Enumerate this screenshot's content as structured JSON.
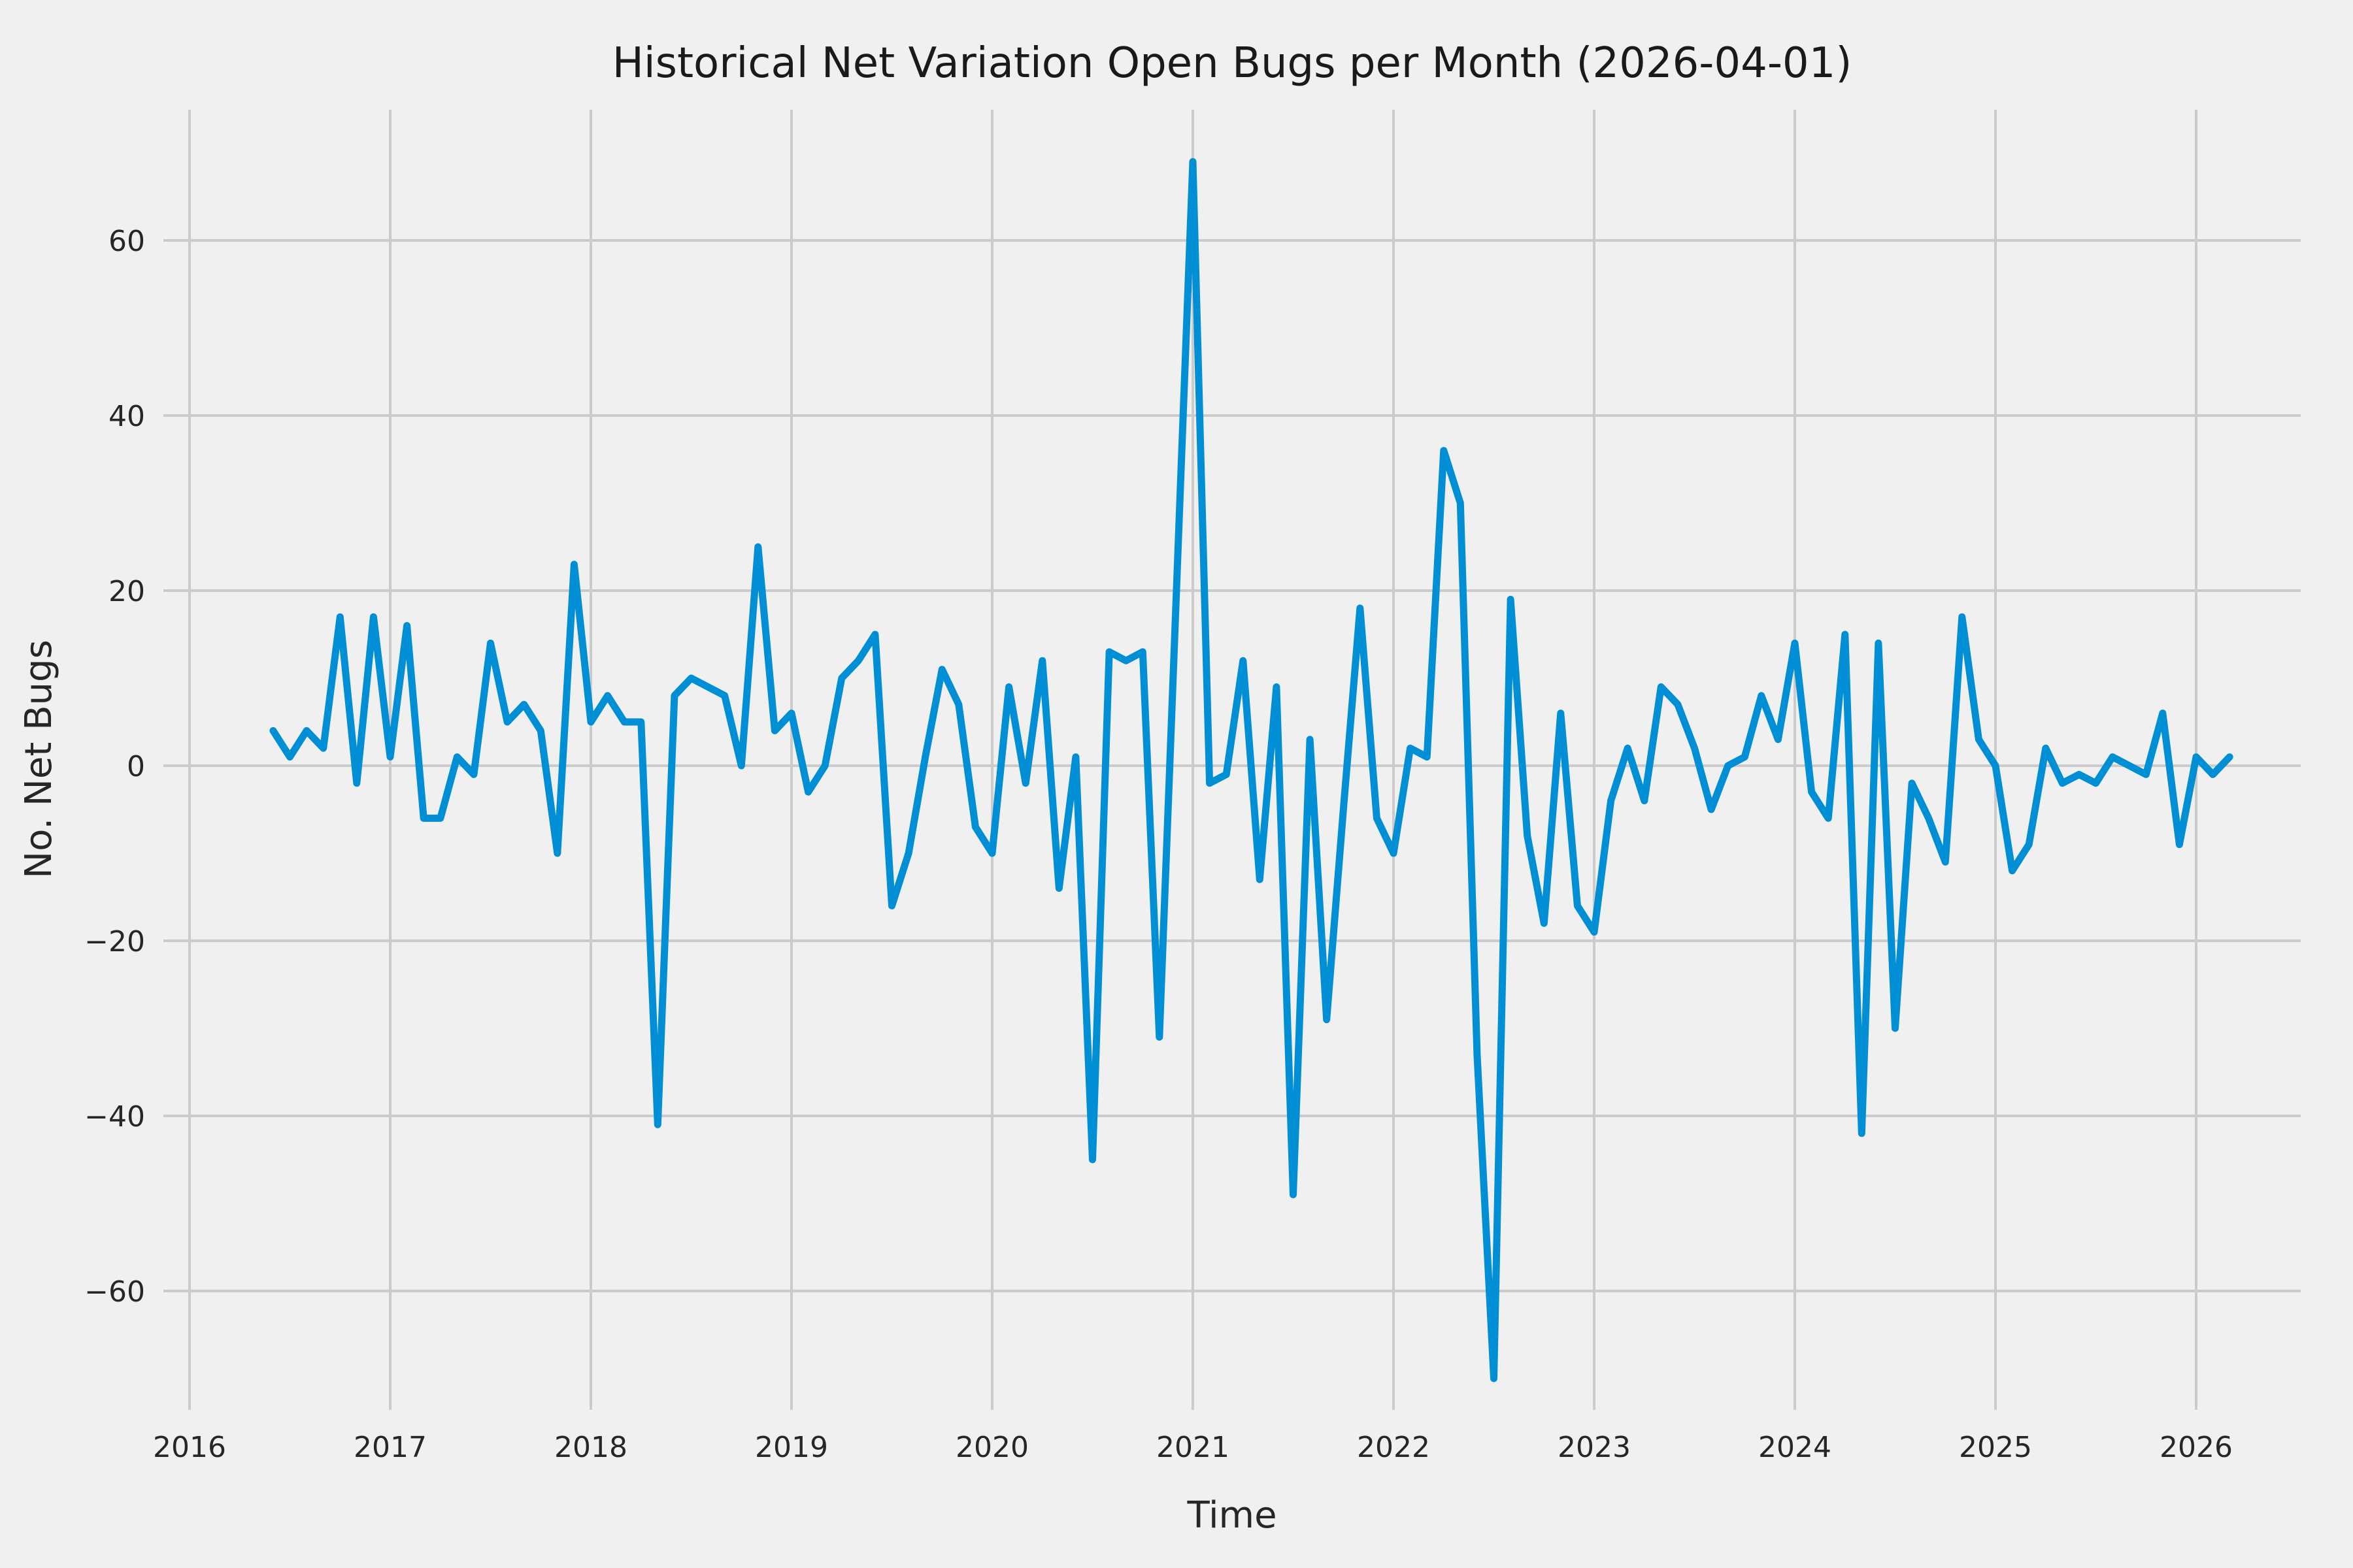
{
  "figure": {
    "background_color": "#f0f0f0",
    "grid_color": "#cbcbcb",
    "line_color": "#008fd5"
  },
  "chart_data": {
    "type": "line",
    "title": "Historical Net Variation Open Bugs per Month (2026-04-01)",
    "xlabel": "Time",
    "ylabel": "No. Net Bugs",
    "legend": "none",
    "grid": "on",
    "x_tick_labels": [
      "2016",
      "2017",
      "2018",
      "2019",
      "2020",
      "2021",
      "2022",
      "2023",
      "2024",
      "2025",
      "2026"
    ],
    "y_tick_labels": [
      "−60",
      "−40",
      "−20",
      "0",
      "20",
      "40",
      "60"
    ],
    "y_tick_values": [
      -60,
      -40,
      -20,
      0,
      20,
      40,
      60
    ],
    "xlim_years": [
      2015.86,
      2026.52
    ],
    "ylim": [
      -73.5,
      74.5
    ],
    "series": [
      {
        "name": "Net variation of open bugs",
        "color": "#008fd5",
        "points": [
          {
            "date": "2016-06",
            "value": 4
          },
          {
            "date": "2016-07",
            "value": 1
          },
          {
            "date": "2016-08",
            "value": 4
          },
          {
            "date": "2016-09",
            "value": 2
          },
          {
            "date": "2016-10",
            "value": 17
          },
          {
            "date": "2016-11",
            "value": -2
          },
          {
            "date": "2016-12",
            "value": 17
          },
          {
            "date": "2017-01",
            "value": 1
          },
          {
            "date": "2017-02",
            "value": 16
          },
          {
            "date": "2017-03",
            "value": -6
          },
          {
            "date": "2017-04",
            "value": -6
          },
          {
            "date": "2017-05",
            "value": 1
          },
          {
            "date": "2017-06",
            "value": -1
          },
          {
            "date": "2017-07",
            "value": 14
          },
          {
            "date": "2017-08",
            "value": 5
          },
          {
            "date": "2017-09",
            "value": 7
          },
          {
            "date": "2017-10",
            "value": 4
          },
          {
            "date": "2017-11",
            "value": -10
          },
          {
            "date": "2017-12",
            "value": 23
          },
          {
            "date": "2018-01",
            "value": 5
          },
          {
            "date": "2018-02",
            "value": 8
          },
          {
            "date": "2018-03",
            "value": 5
          },
          {
            "date": "2018-04",
            "value": 5
          },
          {
            "date": "2018-05",
            "value": -41
          },
          {
            "date": "2018-06",
            "value": 8
          },
          {
            "date": "2018-07",
            "value": 10
          },
          {
            "date": "2018-08",
            "value": 9
          },
          {
            "date": "2018-09",
            "value": 8
          },
          {
            "date": "2018-10",
            "value": 0
          },
          {
            "date": "2018-11",
            "value": 25
          },
          {
            "date": "2018-12",
            "value": 4
          },
          {
            "date": "2019-01",
            "value": 6
          },
          {
            "date": "2019-02",
            "value": -3
          },
          {
            "date": "2019-03",
            "value": 0
          },
          {
            "date": "2019-04",
            "value": 10
          },
          {
            "date": "2019-05",
            "value": 12
          },
          {
            "date": "2019-06",
            "value": 15
          },
          {
            "date": "2019-07",
            "value": -16
          },
          {
            "date": "2019-08",
            "value": -10
          },
          {
            "date": "2019-09",
            "value": 1
          },
          {
            "date": "2019-10",
            "value": 11
          },
          {
            "date": "2019-11",
            "value": 7
          },
          {
            "date": "2019-12",
            "value": -7
          },
          {
            "date": "2020-01",
            "value": -10
          },
          {
            "date": "2020-02",
            "value": 9
          },
          {
            "date": "2020-03",
            "value": -2
          },
          {
            "date": "2020-04",
            "value": 12
          },
          {
            "date": "2020-05",
            "value": -14
          },
          {
            "date": "2020-06",
            "value": 1
          },
          {
            "date": "2020-07",
            "value": -45
          },
          {
            "date": "2020-08",
            "value": 13
          },
          {
            "date": "2020-09",
            "value": 12
          },
          {
            "date": "2020-10",
            "value": 13
          },
          {
            "date": "2020-11",
            "value": -31
          },
          {
            "date": "2020-12",
            "value": 19
          },
          {
            "date": "2021-01",
            "value": 69
          },
          {
            "date": "2021-02",
            "value": -2
          },
          {
            "date": "2021-03",
            "value": -1
          },
          {
            "date": "2021-04",
            "value": 12
          },
          {
            "date": "2021-05",
            "value": -13
          },
          {
            "date": "2021-06",
            "value": 9
          },
          {
            "date": "2021-07",
            "value": -49
          },
          {
            "date": "2021-08",
            "value": 3
          },
          {
            "date": "2021-09",
            "value": -29
          },
          {
            "date": "2021-10",
            "value": -5
          },
          {
            "date": "2021-11",
            "value": 18
          },
          {
            "date": "2021-12",
            "value": -6
          },
          {
            "date": "2022-01",
            "value": -10
          },
          {
            "date": "2022-02",
            "value": 2
          },
          {
            "date": "2022-03",
            "value": 1
          },
          {
            "date": "2022-04",
            "value": 36
          },
          {
            "date": "2022-05",
            "value": 30
          },
          {
            "date": "2022-06",
            "value": -33
          },
          {
            "date": "2022-07",
            "value": -70
          },
          {
            "date": "2022-08",
            "value": 19
          },
          {
            "date": "2022-09",
            "value": -8
          },
          {
            "date": "2022-10",
            "value": -18
          },
          {
            "date": "2022-11",
            "value": 6
          },
          {
            "date": "2022-12",
            "value": -16
          },
          {
            "date": "2023-01",
            "value": -19
          },
          {
            "date": "2023-02",
            "value": -4
          },
          {
            "date": "2023-03",
            "value": 2
          },
          {
            "date": "2023-04",
            "value": -4
          },
          {
            "date": "2023-05",
            "value": 9
          },
          {
            "date": "2023-06",
            "value": 7
          },
          {
            "date": "2023-07",
            "value": 2
          },
          {
            "date": "2023-08",
            "value": -5
          },
          {
            "date": "2023-09",
            "value": 0
          },
          {
            "date": "2023-10",
            "value": 1
          },
          {
            "date": "2023-11",
            "value": 8
          },
          {
            "date": "2023-12",
            "value": 3
          },
          {
            "date": "2024-01",
            "value": 14
          },
          {
            "date": "2024-02",
            "value": -3
          },
          {
            "date": "2024-03",
            "value": -6
          },
          {
            "date": "2024-04",
            "value": 15
          },
          {
            "date": "2024-05",
            "value": -42
          },
          {
            "date": "2024-06",
            "value": 14
          },
          {
            "date": "2024-07",
            "value": -30
          },
          {
            "date": "2024-08",
            "value": -2
          },
          {
            "date": "2024-09",
            "value": -6
          },
          {
            "date": "2024-10",
            "value": -11
          },
          {
            "date": "2024-11",
            "value": 17
          },
          {
            "date": "2024-12",
            "value": 3
          },
          {
            "date": "2025-01",
            "value": 0
          },
          {
            "date": "2025-02",
            "value": -12
          },
          {
            "date": "2025-03",
            "value": -9
          },
          {
            "date": "2025-04",
            "value": 2
          },
          {
            "date": "2025-05",
            "value": -2
          },
          {
            "date": "2025-06",
            "value": -1
          },
          {
            "date": "2025-07",
            "value": -2
          },
          {
            "date": "2025-08",
            "value": 1
          },
          {
            "date": "2025-09",
            "value": 0
          },
          {
            "date": "2025-10",
            "value": -1
          },
          {
            "date": "2025-11",
            "value": 6
          },
          {
            "date": "2025-12",
            "value": -9
          },
          {
            "date": "2026-01",
            "value": 1
          },
          {
            "date": "2026-02",
            "value": -1
          },
          {
            "date": "2026-03",
            "value": 1
          }
        ]
      }
    ]
  }
}
